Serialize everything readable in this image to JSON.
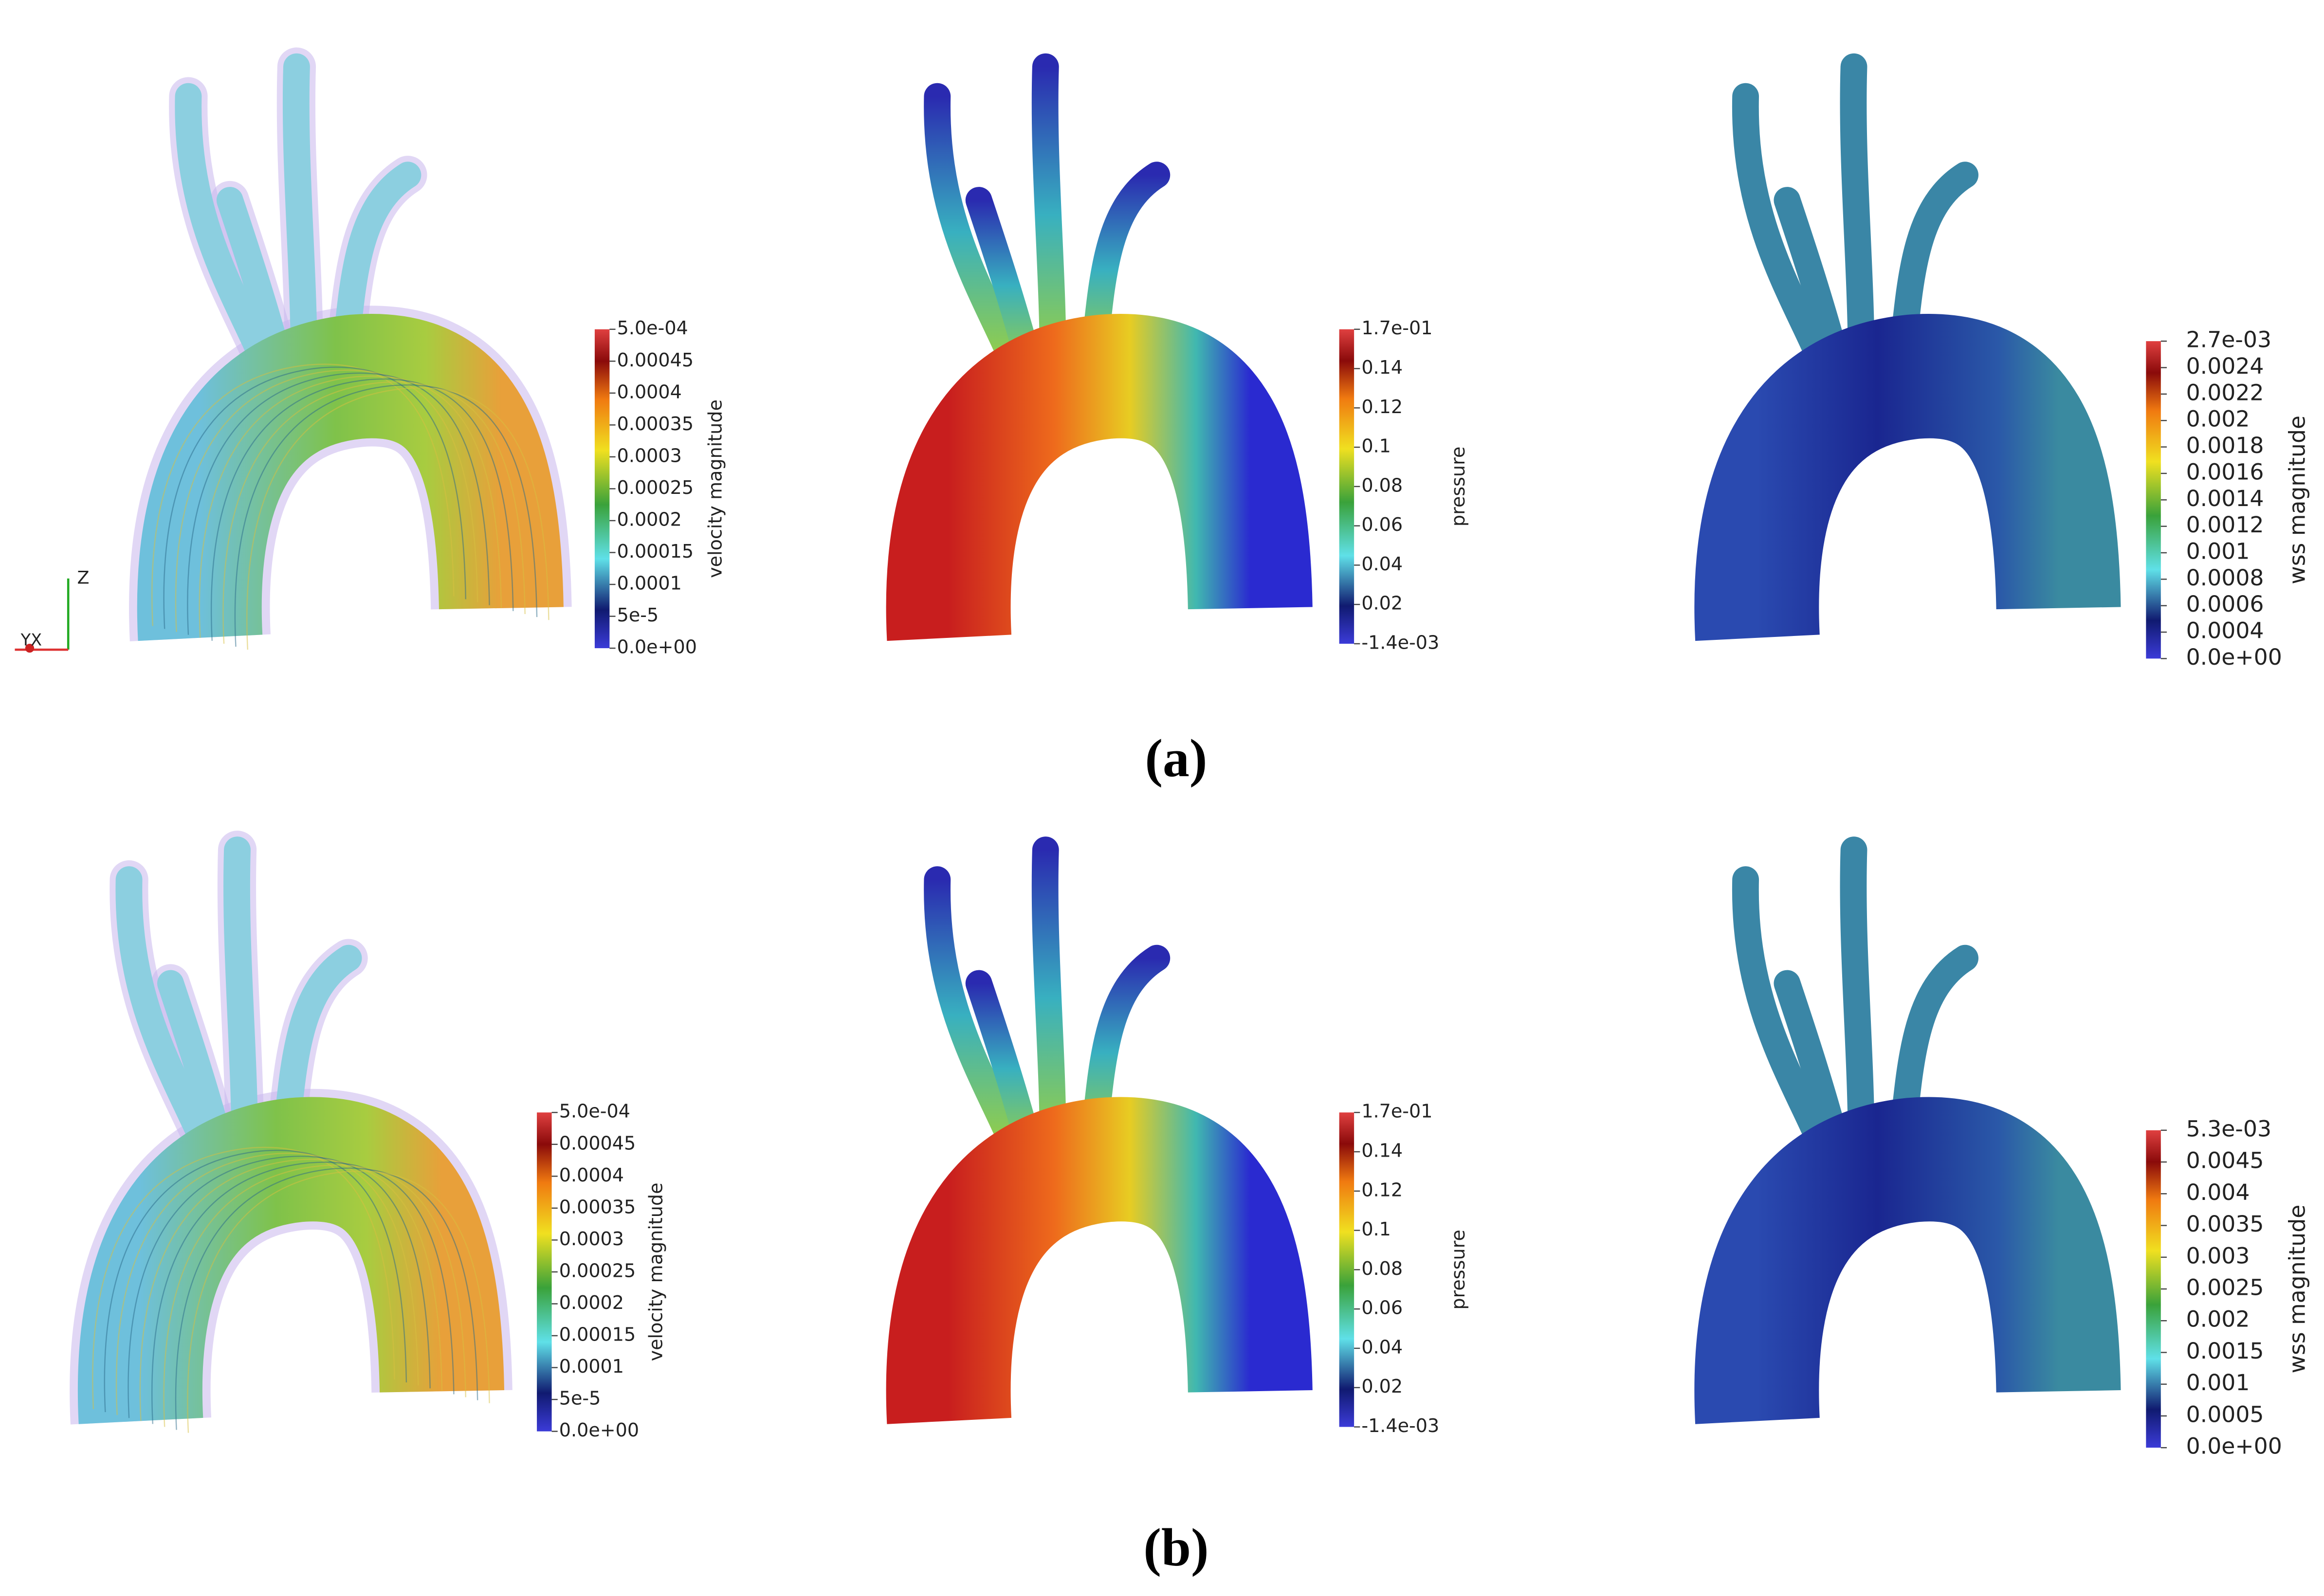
{
  "rows": [
    {
      "label": "(a)",
      "axes_labels": [
        "Z",
        "YX"
      ],
      "panels": [
        {
          "colorbar": {
            "title": "velocity magnitude",
            "ticks": [
              "5.0e-04",
              "0.00045",
              "0.0004",
              "0.00035",
              "0.0003",
              "0.00025",
              "0.0002",
              "0.00015",
              "0.0001",
              "5e-5",
              "0.0e+00"
            ]
          }
        },
        {
          "colorbar": {
            "title": "pressure",
            "ticks": [
              "1.7e-01",
              "0.14",
              "0.12",
              "0.1",
              "0.08",
              "0.06",
              "0.04",
              "0.02",
              "-1.4e-03"
            ]
          }
        },
        {
          "colorbar": {
            "title": "wss magnitude",
            "ticks": [
              "2.7e-03",
              "0.0024",
              "0.0022",
              "0.002",
              "0.0018",
              "0.0016",
              "0.0014",
              "0.0012",
              "0.001",
              "0.0008",
              "0.0006",
              "0.0004",
              "0.0e+00"
            ]
          }
        }
      ]
    },
    {
      "label": "(b)",
      "panels": [
        {
          "colorbar": {
            "title": "velocity magnitude",
            "ticks": [
              "5.0e-04",
              "0.00045",
              "0.0004",
              "0.00035",
              "0.0003",
              "0.00025",
              "0.0002",
              "0.00015",
              "0.0001",
              "5e-5",
              "0.0e+00"
            ]
          }
        },
        {
          "colorbar": {
            "title": "pressure",
            "ticks": [
              "1.7e-01",
              "0.14",
              "0.12",
              "0.1",
              "0.08",
              "0.06",
              "0.04",
              "0.02",
              "-1.4e-03"
            ]
          }
        },
        {
          "colorbar": {
            "title": "wss magnitude",
            "ticks": [
              "5.3e-03",
              "0.0045",
              "0.004",
              "0.0035",
              "0.003",
              "0.0025",
              "0.002",
              "0.0015",
              "0.001",
              "0.0005",
              "0.0e+00"
            ]
          }
        }
      ]
    }
  ]
}
